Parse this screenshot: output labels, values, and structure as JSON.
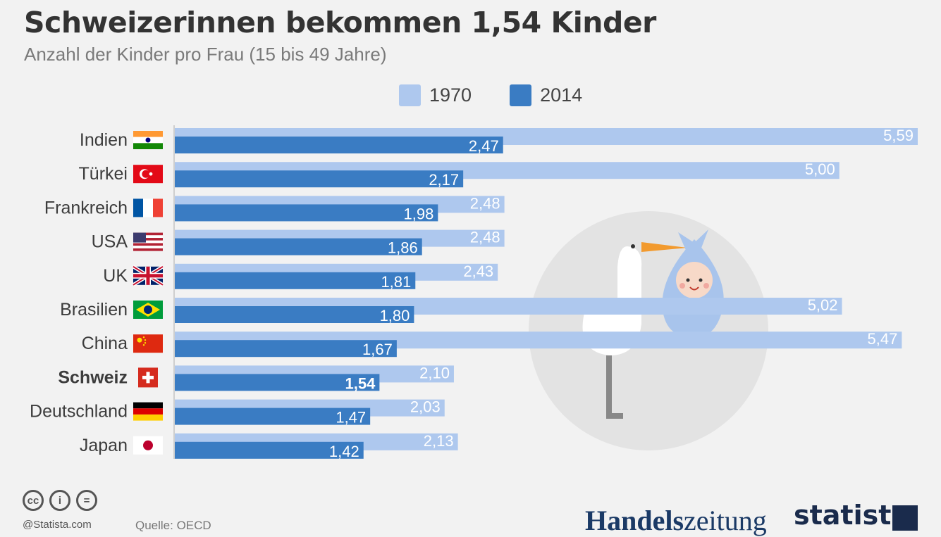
{
  "title": "Schweizerinnen bekommen 1,54 Kinder",
  "subtitle": "Anzahl der Kinder pro Frau (15 bis 49 Jahre)",
  "colors": {
    "light": "#aec8ee",
    "dark": "#3a7cc3",
    "background": "#f2f2f2",
    "circle": "#e3e3e3"
  },
  "footer": {
    "statista": "@Statista.com",
    "source": "Quelle: OECD",
    "cc_icons": [
      "cc-icon",
      "by-icon",
      "nd-icon"
    ],
    "cc_glyphs": [
      "cc",
      "i",
      "="
    ]
  },
  "logos": {
    "hz_bold": "Handels",
    "hz_light": "zeitung",
    "statista": "statista"
  },
  "chart_data": {
    "type": "bar",
    "orientation": "horizontal",
    "categories": [
      "Indien",
      "Türkei",
      "Frankreich",
      "USA",
      "UK",
      "Brasilien",
      "China",
      "Schweiz",
      "Deutschland",
      "Japan"
    ],
    "highlight_category": "Schweiz",
    "flags": [
      "india-flag-icon",
      "turkey-flag-icon",
      "france-flag-icon",
      "usa-flag-icon",
      "uk-flag-icon",
      "brazil-flag-icon",
      "china-flag-icon",
      "switzerland-flag-icon",
      "germany-flag-icon",
      "japan-flag-icon"
    ],
    "series": [
      {
        "name": "1970",
        "color": "#aec8ee",
        "values": [
          5.59,
          5.0,
          2.48,
          2.48,
          2.43,
          5.02,
          5.47,
          2.1,
          2.03,
          2.13
        ],
        "labels": [
          "5,59",
          "5,00",
          "2,48",
          "2,48",
          "2,43",
          "5,02",
          "5,47",
          "2,10",
          "2,03",
          "2,13"
        ]
      },
      {
        "name": "2014",
        "color": "#3a7cc3",
        "values": [
          2.47,
          2.17,
          1.98,
          1.86,
          1.81,
          1.8,
          1.67,
          1.54,
          1.47,
          1.42
        ],
        "labels": [
          "2,47",
          "2,17",
          "1,98",
          "1,86",
          "1,81",
          "1,80",
          "1,67",
          "1,54",
          "1,47",
          "1,42"
        ]
      }
    ],
    "xlim": [
      0,
      5.59
    ],
    "legend_position": "top",
    "grid": false
  }
}
